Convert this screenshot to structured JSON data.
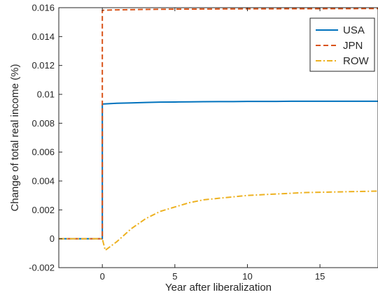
{
  "chart_data": {
    "type": "line",
    "xlabel": "Year after liberalization",
    "ylabel": "Change of total real income (%)",
    "xlim": [
      -3,
      19
    ],
    "ylim": [
      -0.002,
      0.016
    ],
    "xticks": [
      0,
      5,
      10,
      15
    ],
    "xtick_labels": [
      "0",
      "5",
      "10",
      "15"
    ],
    "yticks": [
      -0.002,
      0,
      0.002,
      0.004,
      0.006,
      0.008,
      0.01,
      0.012,
      0.014,
      0.016
    ],
    "ytick_labels": [
      "-0.002",
      "0",
      "0.002",
      "0.004",
      "0.006",
      "0.008",
      "0.01",
      "0.012",
      "0.014",
      "0.016"
    ],
    "grid": false,
    "legend_position": "top-right",
    "series": [
      {
        "name": "USA",
        "color": "#0072BD",
        "style": "solid",
        "x": [
          -3,
          0,
          0,
          1,
          2,
          3,
          4,
          5,
          6,
          7,
          8,
          9,
          10,
          11,
          12,
          13,
          14,
          15,
          16,
          17,
          18,
          19
        ],
        "y": [
          0,
          0,
          0.00933,
          0.00938,
          0.00941,
          0.00944,
          0.00946,
          0.00947,
          0.00948,
          0.00949,
          0.0095,
          0.0095,
          0.00951,
          0.00951,
          0.00951,
          0.00952,
          0.00952,
          0.00952,
          0.00952,
          0.00952,
          0.00952,
          0.00952
        ]
      },
      {
        "name": "JPN",
        "color": "#D95319",
        "style": "dashed",
        "x": [
          -3,
          0,
          0,
          1,
          3,
          5,
          10,
          15,
          19
        ],
        "y": [
          0,
          0,
          0.01582,
          0.01585,
          0.01588,
          0.0159,
          0.01592,
          0.01593,
          0.01594
        ]
      },
      {
        "name": "ROW",
        "color": "#EDB120",
        "style": "dashdot",
        "x": [
          -3,
          0,
          0.2,
          1,
          2,
          3,
          4,
          5,
          6,
          7,
          8,
          9,
          10,
          11,
          12,
          13,
          14,
          15,
          16,
          17,
          18,
          19
        ],
        "y": [
          0,
          0,
          -0.0008,
          -0.0002,
          0.0007,
          0.0014,
          0.0019,
          0.0022,
          0.0025,
          0.0027,
          0.0028,
          0.0029,
          0.003,
          0.00305,
          0.0031,
          0.00315,
          0.0032,
          0.00322,
          0.00324,
          0.00326,
          0.00328,
          0.0033
        ]
      }
    ]
  }
}
